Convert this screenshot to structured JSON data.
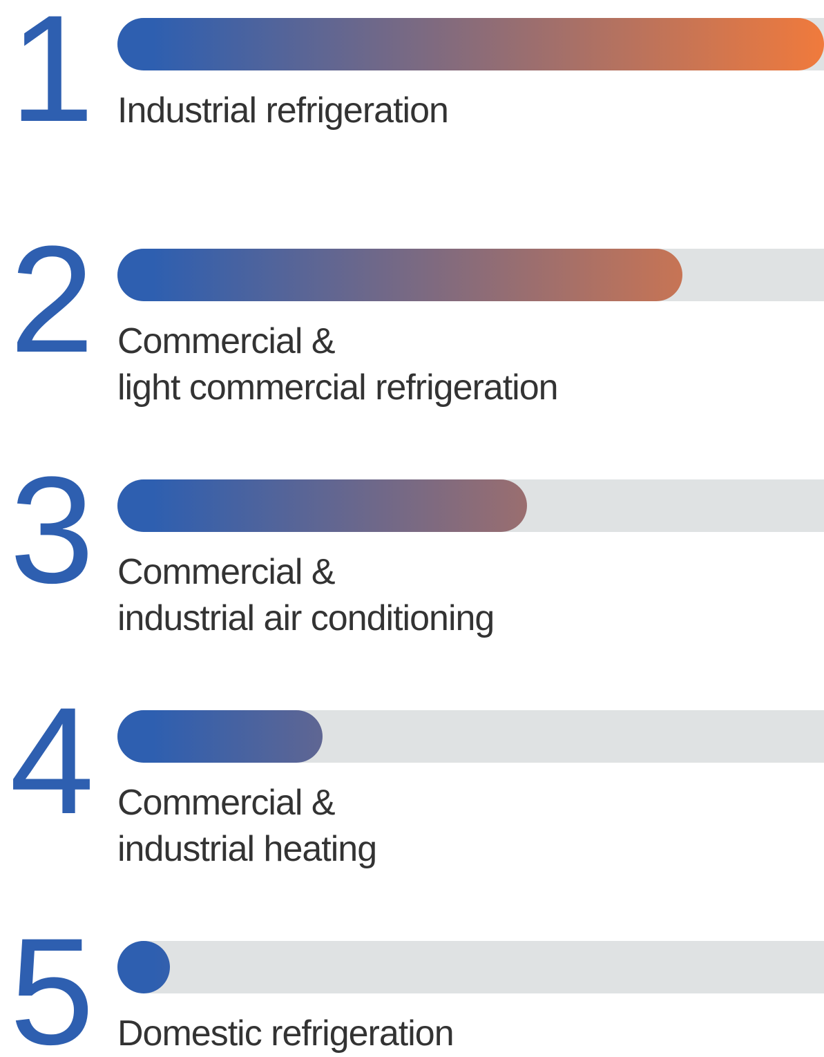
{
  "chart_data": {
    "type": "bar",
    "ranks": [
      1,
      2,
      3,
      4,
      5
    ],
    "categories": [
      "Industrial refrigeration",
      "Commercial &\nlight commercial refrigeration",
      "Commercial &\nindustrial air conditioning",
      "Commercial &\nindustrial heating",
      "Domestic refrigeration"
    ],
    "values": [
      100,
      80,
      58,
      29,
      7
    ],
    "xlim": [
      0,
      100
    ],
    "color_start": "#2e5fb0",
    "color_end": "#f07a3c",
    "track_color": "#dfe2e3",
    "rank_color": "#2e5fb0"
  }
}
